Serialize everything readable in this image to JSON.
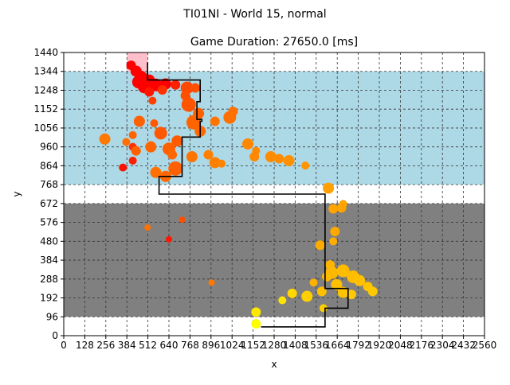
{
  "figure": {
    "suptitle": "TI01NI - World 15, normal"
  },
  "chart_data": {
    "type": "scatter",
    "title": "Game Duration: 27650.0 [ms]",
    "xlabel": "x",
    "ylabel": "y",
    "xlim": [
      0,
      2560
    ],
    "ylim": [
      0,
      1440
    ],
    "xticks": [
      0,
      128,
      256,
      384,
      512,
      640,
      768,
      896,
      1024,
      1152,
      1280,
      1408,
      1536,
      1664,
      1792,
      1920,
      2048,
      2176,
      2304,
      2432,
      2560
    ],
    "yticks": [
      0,
      96,
      192,
      288,
      384,
      480,
      576,
      672,
      768,
      864,
      960,
      1056,
      1152,
      1248,
      1344,
      1440
    ],
    "grid": true,
    "regions": [
      {
        "x0": 0,
        "x1": 2560,
        "y0": 768,
        "y1": 1344,
        "color": "#add8e6"
      },
      {
        "x0": 0,
        "x1": 2560,
        "y0": 96,
        "y1": 672,
        "color": "#808080"
      },
      {
        "x0": 384,
        "x1": 512,
        "y0": 1344,
        "y1": 1440,
        "color": "#ffc0cb"
      }
    ],
    "path": {
      "color": "#000000",
      "points": [
        [
          510,
          1390
        ],
        [
          510,
          1300
        ],
        [
          830,
          1300
        ],
        [
          830,
          1190
        ],
        [
          810,
          1190
        ],
        [
          810,
          1100
        ],
        [
          840,
          1100
        ],
        [
          840,
          1090
        ],
        [
          830,
          1090
        ],
        [
          830,
          1010
        ],
        [
          720,
          1010
        ],
        [
          720,
          810
        ],
        [
          580,
          810
        ],
        [
          580,
          720
        ],
        [
          1590,
          720
        ],
        [
          1590,
          240
        ],
        [
          1730,
          240
        ],
        [
          1730,
          140
        ],
        [
          1590,
          140
        ],
        [
          1590,
          45
        ],
        [
          1200,
          45
        ]
      ]
    },
    "points": [
      {
        "x": 410,
        "y": 1375,
        "r": 6,
        "color": "#ff0000"
      },
      {
        "x": 440,
        "y": 1345,
        "r": 7,
        "color": "#ff0000"
      },
      {
        "x": 470,
        "y": 1315,
        "r": 8,
        "color": "#ff0000"
      },
      {
        "x": 455,
        "y": 1290,
        "r": 8,
        "color": "#ff0000"
      },
      {
        "x": 490,
        "y": 1265,
        "r": 8,
        "color": "#ff0000"
      },
      {
        "x": 520,
        "y": 1300,
        "r": 7,
        "color": "#ff0000"
      },
      {
        "x": 560,
        "y": 1275,
        "r": 8,
        "color": "#ff0000"
      },
      {
        "x": 620,
        "y": 1280,
        "r": 7,
        "color": "#ff0000"
      },
      {
        "x": 680,
        "y": 1275,
        "r": 6,
        "color": "#ff2000"
      },
      {
        "x": 520,
        "y": 1240,
        "r": 6,
        "color": "#ff1500"
      },
      {
        "x": 600,
        "y": 1250,
        "r": 6,
        "color": "#ff3000"
      },
      {
        "x": 540,
        "y": 1195,
        "r": 5,
        "color": "#ff4000"
      },
      {
        "x": 750,
        "y": 1260,
        "r": 8,
        "color": "#ff4800"
      },
      {
        "x": 800,
        "y": 1260,
        "r": 6,
        "color": "#ff5000"
      },
      {
        "x": 760,
        "y": 1175,
        "r": 9,
        "color": "#ff5500"
      },
      {
        "x": 740,
        "y": 1220,
        "r": 6,
        "color": "#ff5000"
      },
      {
        "x": 820,
        "y": 1130,
        "r": 7,
        "color": "#ff6000"
      },
      {
        "x": 790,
        "y": 1085,
        "r": 9,
        "color": "#ff6400"
      },
      {
        "x": 830,
        "y": 1040,
        "r": 7,
        "color": "#ff6800"
      },
      {
        "x": 1010,
        "y": 1110,
        "r": 8,
        "color": "#ff7000"
      },
      {
        "x": 1030,
        "y": 1140,
        "r": 6,
        "color": "#ff7000"
      },
      {
        "x": 920,
        "y": 1090,
        "r": 6,
        "color": "#ff7400"
      },
      {
        "x": 460,
        "y": 1090,
        "r": 7,
        "color": "#ff6000"
      },
      {
        "x": 420,
        "y": 1020,
        "r": 5,
        "color": "#ff6400"
      },
      {
        "x": 550,
        "y": 1080,
        "r": 5,
        "color": "#ff5800"
      },
      {
        "x": 590,
        "y": 1030,
        "r": 8,
        "color": "#ff5800"
      },
      {
        "x": 530,
        "y": 960,
        "r": 7,
        "color": "#ff6400"
      },
      {
        "x": 640,
        "y": 950,
        "r": 8,
        "color": "#ff6000"
      },
      {
        "x": 690,
        "y": 990,
        "r": 7,
        "color": "#ff5a00"
      },
      {
        "x": 680,
        "y": 850,
        "r": 9,
        "color": "#ff6000"
      },
      {
        "x": 660,
        "y": 920,
        "r": 6,
        "color": "#ff6800"
      },
      {
        "x": 620,
        "y": 810,
        "r": 7,
        "color": "#ff6800"
      },
      {
        "x": 560,
        "y": 830,
        "r": 7,
        "color": "#ff7000"
      },
      {
        "x": 780,
        "y": 910,
        "r": 7,
        "color": "#ff7400"
      },
      {
        "x": 880,
        "y": 920,
        "r": 6,
        "color": "#ff8000"
      },
      {
        "x": 920,
        "y": 880,
        "r": 7,
        "color": "#ff8000"
      },
      {
        "x": 960,
        "y": 875,
        "r": 5,
        "color": "#ff8400"
      },
      {
        "x": 1120,
        "y": 975,
        "r": 7,
        "color": "#ff8800"
      },
      {
        "x": 1170,
        "y": 940,
        "r": 5,
        "color": "#ff8800"
      },
      {
        "x": 1160,
        "y": 910,
        "r": 6,
        "color": "#ff8800"
      },
      {
        "x": 1260,
        "y": 910,
        "r": 7,
        "color": "#ff8c00"
      },
      {
        "x": 1310,
        "y": 900,
        "r": 6,
        "color": "#ff8c00"
      },
      {
        "x": 1370,
        "y": 890,
        "r": 7,
        "color": "#ff9000"
      },
      {
        "x": 1470,
        "y": 865,
        "r": 5,
        "color": "#ff9400"
      },
      {
        "x": 250,
        "y": 1000,
        "r": 7,
        "color": "#ff7800"
      },
      {
        "x": 380,
        "y": 985,
        "r": 5,
        "color": "#ff7000"
      },
      {
        "x": 420,
        "y": 960,
        "r": 5,
        "color": "#ff3000"
      },
      {
        "x": 440,
        "y": 940,
        "r": 6,
        "color": "#ff6000"
      },
      {
        "x": 420,
        "y": 890,
        "r": 5,
        "color": "#ff2000"
      },
      {
        "x": 360,
        "y": 855,
        "r": 5,
        "color": "#ff1000"
      },
      {
        "x": 1610,
        "y": 750,
        "r": 7,
        "color": "#ffa000"
      },
      {
        "x": 1640,
        "y": 645,
        "r": 6,
        "color": "#ffa400"
      },
      {
        "x": 1690,
        "y": 650,
        "r": 6,
        "color": "#ffa400"
      },
      {
        "x": 1700,
        "y": 670,
        "r": 5,
        "color": "#ffa400"
      },
      {
        "x": 1650,
        "y": 530,
        "r": 6,
        "color": "#ffa800"
      },
      {
        "x": 1640,
        "y": 480,
        "r": 5,
        "color": "#ffac00"
      },
      {
        "x": 1560,
        "y": 460,
        "r": 6,
        "color": "#ffac00"
      },
      {
        "x": 1620,
        "y": 360,
        "r": 6,
        "color": "#ffb400"
      },
      {
        "x": 1630,
        "y": 320,
        "r": 8,
        "color": "#ffb800"
      },
      {
        "x": 1700,
        "y": 330,
        "r": 8,
        "color": "#ffbc00"
      },
      {
        "x": 1760,
        "y": 300,
        "r": 8,
        "color": "#ffbc00"
      },
      {
        "x": 1800,
        "y": 280,
        "r": 7,
        "color": "#ffc000"
      },
      {
        "x": 1850,
        "y": 250,
        "r": 6,
        "color": "#ffc400"
      },
      {
        "x": 1880,
        "y": 225,
        "r": 6,
        "color": "#ffc800"
      },
      {
        "x": 1660,
        "y": 260,
        "r": 7,
        "color": "#ffc000"
      },
      {
        "x": 1700,
        "y": 220,
        "r": 7,
        "color": "#ffc400"
      },
      {
        "x": 1750,
        "y": 210,
        "r": 6,
        "color": "#ffc800"
      },
      {
        "x": 1600,
        "y": 300,
        "r": 6,
        "color": "#ffb800"
      },
      {
        "x": 1520,
        "y": 270,
        "r": 5,
        "color": "#ffb000"
      },
      {
        "x": 1570,
        "y": 225,
        "r": 6,
        "color": "#ffc000"
      },
      {
        "x": 1480,
        "y": 200,
        "r": 7,
        "color": "#ffd000"
      },
      {
        "x": 1390,
        "y": 215,
        "r": 6,
        "color": "#ffd800"
      },
      {
        "x": 1330,
        "y": 180,
        "r": 5,
        "color": "#ffe400"
      },
      {
        "x": 1580,
        "y": 140,
        "r": 5,
        "color": "#ffd000"
      },
      {
        "x": 1170,
        "y": 120,
        "r": 6,
        "color": "#ffe800"
      },
      {
        "x": 1170,
        "y": 60,
        "r": 6,
        "color": "#ffff00"
      },
      {
        "x": 720,
        "y": 590,
        "r": 4,
        "color": "#ff5000"
      },
      {
        "x": 510,
        "y": 550,
        "r": 4,
        "color": "#ff7000"
      },
      {
        "x": 640,
        "y": 490,
        "r": 4,
        "color": "#ff1500"
      },
      {
        "x": 900,
        "y": 270,
        "r": 4,
        "color": "#ff7800"
      }
    ]
  }
}
